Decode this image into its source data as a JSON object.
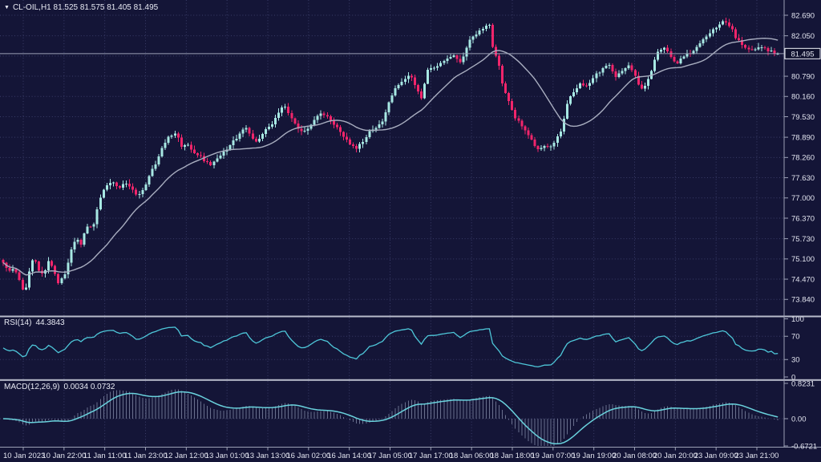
{
  "header": {
    "symbol_line": "CL-OIL,H1 81.525 81.575 81.405 81.495",
    "symbol": "CL-OIL",
    "timeframe": "H1"
  },
  "colors": {
    "background": "#141537",
    "grid": "#3A3D68",
    "bull": "#A7E8E3",
    "bear": "#F1256B",
    "ma_line": "#A9AEC0",
    "price_line": "#9BA0B5",
    "rsi_line": "#4EC7D9",
    "macd_signal": "#6AD2DD",
    "macd_histogram": "#AEB9D6",
    "separator": "#B9BCCB",
    "axis_text": "#E2E4EF",
    "tag_border": "#EEF0F8"
  },
  "chart_data": {
    "type": "candlestick",
    "title": "CL-OIL,H1",
    "ohlc_readout": {
      "open": "81.525",
      "high": "81.575",
      "low": "81.405",
      "close": "81.495"
    },
    "price_axis": {
      "ticks": [
        "82.690",
        "82.050",
        "81.420",
        "80.790",
        "80.160",
        "79.530",
        "78.890",
        "78.260",
        "77.630",
        "77.000",
        "76.370",
        "75.730",
        "75.100",
        "74.470",
        "73.840"
      ],
      "current_price": "81.495"
    },
    "time_axis": {
      "labels": [
        "10 Jan 2023",
        "10 Jan 22:00",
        "11 Jan 11:00",
        "11 Jan 23:00",
        "12 Jan 12:00",
        "13 Jan 01:00",
        "13 Jan 13:00",
        "16 Jan 02:00",
        "16 Jan 14:00",
        "17 Jan 05:00",
        "17 Jan 17:00",
        "18 Jan 06:00",
        "18 Jan 18:00",
        "19 Jan 07:00",
        "19 Jan 19:00",
        "20 Jan 08:00",
        "20 Jan 20:00",
        "23 Jan 09:00",
        "23 Jan 21:00"
      ]
    },
    "candle_count": 240,
    "price_path": [
      [
        5,
        74.95
      ],
      [
        10,
        74.7
      ],
      [
        18,
        74.85
      ],
      [
        26,
        74.3
      ],
      [
        30,
        73.95
      ],
      [
        36,
        74.7
      ],
      [
        42,
        75.2
      ],
      [
        50,
        74.6
      ],
      [
        56,
        74.75
      ],
      [
        62,
        75.1
      ],
      [
        68,
        74.7
      ],
      [
        73,
        74.35
      ],
      [
        80,
        74.55
      ],
      [
        88,
        75.3
      ],
      [
        95,
        75.8
      ],
      [
        101,
        75.55
      ],
      [
        109,
        76.15
      ],
      [
        116,
        76.05
      ],
      [
        124,
        76.9
      ],
      [
        131,
        77.35
      ],
      [
        140,
        77.5
      ],
      [
        148,
        77.3
      ],
      [
        157,
        77.45
      ],
      [
        166,
        77.2
      ],
      [
        173,
        77.1
      ],
      [
        181,
        77.4
      ],
      [
        189,
        77.85
      ],
      [
        197,
        78.2
      ],
      [
        205,
        78.7
      ],
      [
        213,
        78.95
      ],
      [
        219,
        79.05
      ],
      [
        227,
        78.55
      ],
      [
        234,
        78.7
      ],
      [
        242,
        78.4
      ],
      [
        252,
        78.25
      ],
      [
        262,
        78.0
      ],
      [
        270,
        78.2
      ],
      [
        280,
        78.45
      ],
      [
        290,
        78.75
      ],
      [
        300,
        79.0
      ],
      [
        307,
        79.2
      ],
      [
        313,
        78.9
      ],
      [
        321,
        78.7
      ],
      [
        330,
        79.1
      ],
      [
        340,
        79.3
      ],
      [
        348,
        79.7
      ],
      [
        354,
        79.9
      ],
      [
        362,
        79.55
      ],
      [
        371,
        79.15
      ],
      [
        380,
        79.05
      ],
      [
        390,
        79.35
      ],
      [
        397,
        79.55
      ],
      [
        403,
        79.65
      ],
      [
        410,
        79.45
      ],
      [
        419,
        79.2
      ],
      [
        428,
        78.95
      ],
      [
        436,
        78.7
      ],
      [
        444,
        78.55
      ],
      [
        452,
        78.7
      ],
      [
        461,
        79.05
      ],
      [
        470,
        79.2
      ],
      [
        477,
        79.4
      ],
      [
        483,
        79.8
      ],
      [
        490,
        80.3
      ],
      [
        497,
        80.5
      ],
      [
        504,
        80.65
      ],
      [
        511,
        80.9
      ],
      [
        518,
        80.5
      ],
      [
        526,
        80.1
      ],
      [
        533,
        80.95
      ],
      [
        541,
        81.05
      ],
      [
        549,
        81.15
      ],
      [
        557,
        81.3
      ],
      [
        565,
        81.5
      ],
      [
        572,
        81.2
      ],
      [
        579,
        81.45
      ],
      [
        586,
        81.9
      ],
      [
        594,
        82.1
      ],
      [
        602,
        82.3
      ],
      [
        610,
        82.45
      ],
      [
        615,
        81.6
      ],
      [
        621,
        81.35
      ],
      [
        626,
        80.6
      ],
      [
        633,
        80.1
      ],
      [
        641,
        79.55
      ],
      [
        649,
        79.3
      ],
      [
        656,
        79.1
      ],
      [
        663,
        78.8
      ],
      [
        671,
        78.5
      ],
      [
        678,
        78.65
      ],
      [
        686,
        78.55
      ],
      [
        694,
        78.8
      ],
      [
        701,
        79.2
      ],
      [
        707,
        79.95
      ],
      [
        715,
        80.3
      ],
      [
        723,
        80.55
      ],
      [
        731,
        80.45
      ],
      [
        739,
        80.7
      ],
      [
        746,
        80.9
      ],
      [
        754,
        81.1
      ],
      [
        760,
        81.15
      ],
      [
        768,
        80.75
      ],
      [
        776,
        80.95
      ],
      [
        784,
        81.1
      ],
      [
        791,
        80.9
      ],
      [
        797,
        80.45
      ],
      [
        803,
        80.4
      ],
      [
        809,
        80.7
      ],
      [
        815,
        81.2
      ],
      [
        822,
        81.6
      ],
      [
        829,
        81.65
      ],
      [
        836,
        81.45
      ],
      [
        843,
        81.15
      ],
      [
        851,
        81.35
      ],
      [
        859,
        81.5
      ],
      [
        866,
        81.6
      ],
      [
        874,
        81.8
      ],
      [
        882,
        82.05
      ],
      [
        890,
        82.25
      ],
      [
        897,
        82.4
      ],
      [
        904,
        82.5
      ],
      [
        911,
        82.35
      ],
      [
        918,
        82.0
      ],
      [
        926,
        81.75
      ],
      [
        933,
        81.6
      ],
      [
        941,
        81.65
      ],
      [
        949,
        81.7
      ],
      [
        956,
        81.6
      ],
      [
        963,
        81.55
      ],
      [
        970,
        81.495
      ]
    ],
    "overlays": {
      "moving_average": "gray smoothed MA line"
    },
    "rsi": {
      "title": "RSI(14)",
      "value": "44.3843",
      "period": 14,
      "ticks": [
        "100",
        "70",
        "30",
        "0"
      ]
    },
    "macd": {
      "title": "MACD(12,26,9)",
      "values": "0.0034 0.0732",
      "params": [
        12,
        26,
        9
      ],
      "ticks": [
        "0.8231",
        "0.00",
        "-0.6721"
      ]
    }
  }
}
